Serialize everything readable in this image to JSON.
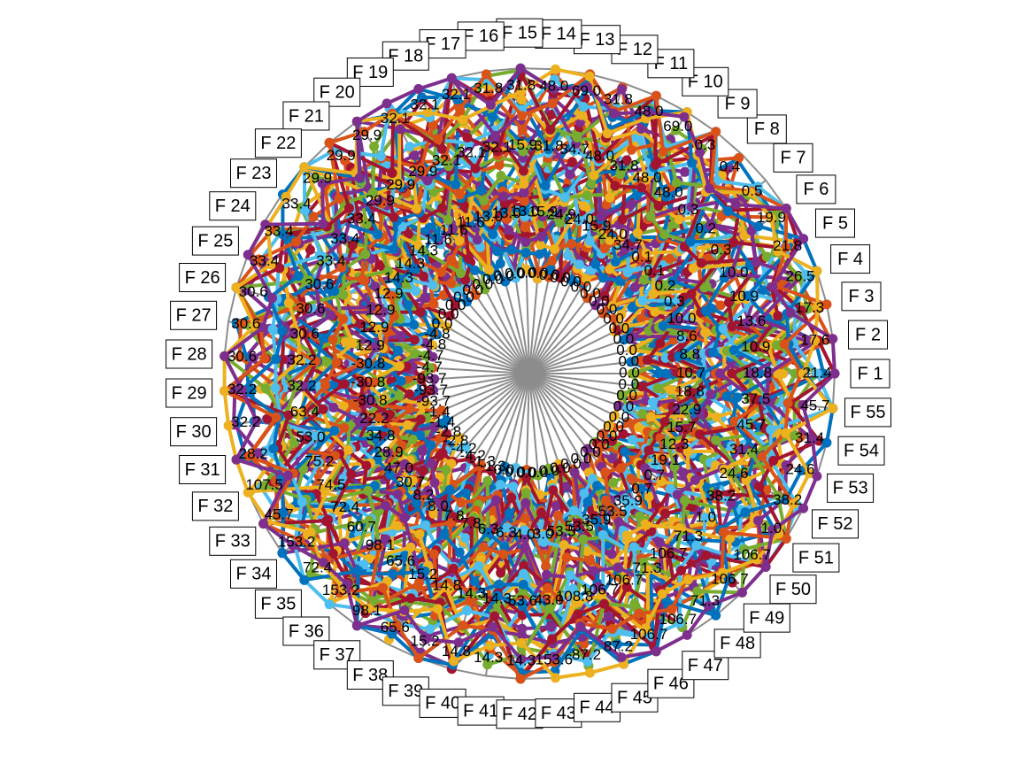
{
  "chart_data": {
    "type": "spider",
    "title": "",
    "axis_count": 55,
    "axes": [
      "F 1",
      "F 2",
      "F 3",
      "F 4",
      "F 5",
      "F 6",
      "F 7",
      "F 8",
      "F 9",
      "F 10",
      "F 11",
      "F 12",
      "F 13",
      "F 14",
      "F 15",
      "F 16",
      "F 17",
      "F 18",
      "F 19",
      "F 20",
      "F 21",
      "F 22",
      "F 23",
      "F 24",
      "F 25",
      "F 26",
      "F 27",
      "F 28",
      "F 29",
      "F 30",
      "F 31",
      "F 32",
      "F 33",
      "F 34",
      "F 35",
      "F 36",
      "F 37",
      "F 38",
      "F 39",
      "F 40",
      "F 41",
      "F 42",
      "F 43",
      "F 44",
      "F 45",
      "F 46",
      "F 47",
      "F 48",
      "F 49",
      "F 50",
      "F 51",
      "F 52",
      "F 53",
      "F 54",
      "F 55"
    ],
    "axis_min": [
      "0.0",
      "0.0",
      "0.0",
      "0.0",
      "0.0",
      "0.0",
      "0.0",
      "0.0",
      "0.0",
      "0.0",
      "0.0",
      "0.0",
      "0.0",
      "0.0",
      "0.0",
      "0.0",
      "0.0",
      "0.0",
      "0.0",
      "0.0",
      "0.0",
      "0.0",
      "0.0",
      "0.0",
      "-4.8",
      "-4.8",
      "-4.7",
      "-4.7",
      "-93.7",
      "-93.7",
      "-93.7",
      "-1.4",
      "-1.4",
      "-2.8",
      "-2.8",
      "-4.2",
      "-4.2",
      "-1.3",
      "-1.3",
      "0.0",
      "0.0",
      "0.0",
      "0.0",
      "0.0",
      "0.0",
      "0.0",
      "0.0",
      "0.0",
      "0.0",
      "0.0",
      "0.0",
      "0.0",
      "0.0",
      "0.0",
      "0.0"
    ],
    "axis_ticks": [
      {
        "axis": 1,
        "labels": [
          "10.7",
          "18.8",
          "21.4"
        ]
      },
      {
        "axis": 2,
        "labels": [
          "8.8",
          "10.9",
          "17.6"
        ]
      },
      {
        "axis": 3,
        "labels": [
          "8.6",
          "13.6",
          "17.3"
        ]
      },
      {
        "axis": 4,
        "labels": [
          "10.0",
          "10.9",
          "26.5"
        ]
      },
      {
        "axis": 5,
        "labels": [
          "0.3",
          "10.0",
          "21.8"
        ]
      },
      {
        "axis": 6,
        "labels": [
          "0.2",
          "0.3",
          "19.9"
        ]
      },
      {
        "axis": 7,
        "labels": [
          "0.1",
          "0.2",
          "0.5"
        ]
      },
      {
        "axis": 8,
        "labels": [
          "0.1",
          "0.3",
          "0.4"
        ]
      },
      {
        "axis": 9,
        "labels": [
          "34.7",
          "48.0",
          "0.3"
        ]
      },
      {
        "axis": 10,
        "labels": [
          "24.0",
          "48.0",
          "69.0"
        ]
      },
      {
        "axis": 11,
        "labels": [
          "15.9",
          "31.8",
          "48.0"
        ]
      },
      {
        "axis": 12,
        "labels": [
          "24.0",
          "48.0",
          "31.8"
        ]
      },
      {
        "axis": 13,
        "labels": [
          "24.9",
          "34.7",
          "69.0"
        ]
      },
      {
        "axis": 14,
        "labels": [
          "15.9",
          "31.8",
          "48.0"
        ]
      },
      {
        "axis": 15,
        "labels": [
          "13.0",
          "15.9",
          "31.8"
        ]
      },
      {
        "axis": 16,
        "labels": [
          "13.0",
          "32.1",
          "31.8"
        ]
      },
      {
        "axis": 17,
        "labels": [
          "13.0",
          "32.1",
          "32.1"
        ]
      },
      {
        "axis": 18,
        "labels": [
          "11.6",
          "32.1",
          "32.1"
        ]
      },
      {
        "axis": 19,
        "labels": [
          "11.6",
          "29.9",
          "32.1"
        ]
      },
      {
        "axis": 20,
        "labels": [
          "11.6",
          "29.9",
          "29.9"
        ]
      },
      {
        "axis": 21,
        "labels": [
          "14.3",
          "29.9",
          "29.9"
        ]
      },
      {
        "axis": 22,
        "labels": [
          "14.3",
          "33.4",
          "29.9"
        ]
      },
      {
        "axis": 23,
        "labels": [
          "14.3",
          "33.4",
          "33.4"
        ]
      },
      {
        "axis": 24,
        "labels": [
          "12.9",
          "33.4",
          "33.4"
        ]
      },
      {
        "axis": 25,
        "labels": [
          "12.9",
          "30.6",
          "33.4"
        ]
      },
      {
        "axis": 26,
        "labels": [
          "12.9",
          "30.6",
          "30.6"
        ]
      },
      {
        "axis": 27,
        "labels": [
          "12.9",
          "30.6",
          "30.6"
        ]
      },
      {
        "axis": 28,
        "labels": [
          "-30.8",
          "32.2",
          "30.6"
        ]
      },
      {
        "axis": 29,
        "labels": [
          "-30.8",
          "32.2",
          "32.2"
        ]
      },
      {
        "axis": 30,
        "labels": [
          "-30.8",
          "63.4",
          "32.2"
        ]
      },
      {
        "axis": 31,
        "labels": [
          "22.2",
          "53.0",
          "28.2"
        ]
      },
      {
        "axis": 32,
        "labels": [
          "34.8",
          "75.2",
          "107.5"
        ]
      },
      {
        "axis": 33,
        "labels": [
          "28.9",
          "74.5",
          "45.7"
        ]
      },
      {
        "axis": 34,
        "labels": [
          "47.0",
          "72.4",
          "153.2"
        ]
      },
      {
        "axis": 35,
        "labels": [
          "30.7",
          "60.7",
          "72.4"
        ]
      },
      {
        "axis": 36,
        "labels": [
          "8.2",
          "98.1",
          "153.2"
        ]
      },
      {
        "axis": 37,
        "labels": [
          "8.0",
          "65.6",
          "98.1"
        ]
      },
      {
        "axis": 38,
        "labels": [
          "7.8",
          "15.2",
          "65.6"
        ]
      },
      {
        "axis": 39,
        "labels": [
          "7.8",
          "14.8",
          "15.2"
        ]
      },
      {
        "axis": 40,
        "labels": [
          "6.3",
          "14.3",
          "14.8"
        ]
      },
      {
        "axis": 41,
        "labels": [
          "6.3",
          "14.3",
          "14.3"
        ]
      },
      {
        "axis": 42,
        "labels": [
          "4.0",
          "53.6",
          "14.3"
        ]
      },
      {
        "axis": 43,
        "labels": [
          "3.0",
          "43.0",
          "153.6"
        ]
      },
      {
        "axis": 44,
        "labels": [
          "53.5",
          "108.8",
          "87.2"
        ]
      },
      {
        "axis": 45,
        "labels": [
          "53.5",
          "106.7",
          "87.2"
        ]
      },
      {
        "axis": 46,
        "labels": [
          "35.9",
          "106.7",
          "106.7"
        ]
      },
      {
        "axis": 47,
        "labels": [
          "53.5",
          "71.3",
          "106.7"
        ]
      },
      {
        "axis": 48,
        "labels": [
          "35.9",
          "106.7",
          "71.3"
        ]
      },
      {
        "axis": 49,
        "labels": [
          "0.7",
          "71.3",
          "106.7"
        ]
      },
      {
        "axis": 50,
        "labels": [
          "0.7",
          "1.0",
          "106.7"
        ]
      },
      {
        "axis": 51,
        "labels": [
          "19.1",
          "38.2",
          "1.0"
        ]
      },
      {
        "axis": 52,
        "labels": [
          "12.3",
          "24.6",
          "38.2"
        ]
      },
      {
        "axis": 53,
        "labels": [
          "15.7",
          "31.4",
          "24.6"
        ]
      },
      {
        "axis": 54,
        "labels": [
          "22.9",
          "45.7",
          "31.4"
        ]
      },
      {
        "axis": 55,
        "labels": [
          "18.8",
          "37.5",
          "45.7"
        ]
      }
    ],
    "series_colors": [
      "#0072BD",
      "#D95319",
      "#EDB120",
      "#7E2F8E",
      "#77AC30",
      "#4DBEEE",
      "#A2142F"
    ],
    "series_count": 60,
    "series_marker": "circle",
    "series_value_range": [
      0.05,
      1.0
    ],
    "grid": true,
    "legend": "none"
  }
}
